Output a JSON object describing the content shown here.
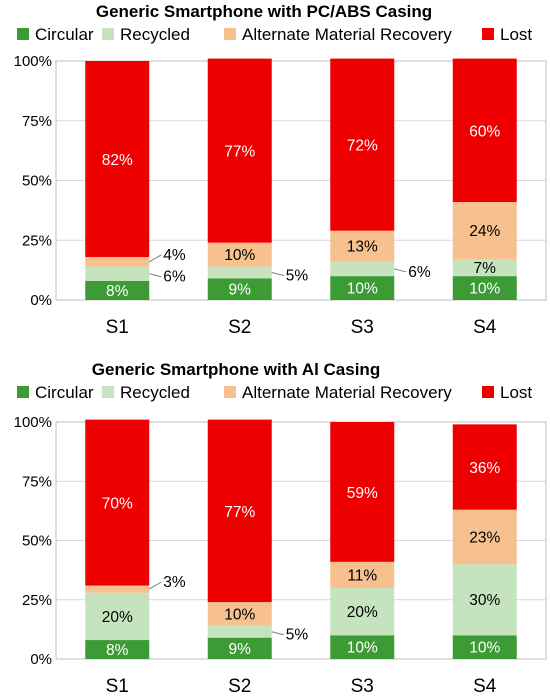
{
  "colors": {
    "circular": "#3d9b35",
    "recycled": "#c6e3bf",
    "alt": "#f6c08f",
    "lost": "#ee0000",
    "label_light": "#ffffff",
    "label_dark": "#000000"
  },
  "chart_data": [
    {
      "type": "bar",
      "stacked": true,
      "title": "Generic Smartphone with PC/ABS Casing",
      "categories": [
        "S1",
        "S2",
        "S3",
        "S4"
      ],
      "ylim": [
        0,
        100
      ],
      "yticks": [
        "0%",
        "25%",
        "50%",
        "75%",
        "100%"
      ],
      "legend_position": "top",
      "series": [
        {
          "name": "Circular",
          "values": [
            8,
            9,
            10,
            10
          ],
          "labels": [
            "8%",
            "9%",
            "10%",
            "10%"
          ]
        },
        {
          "name": "Recycled",
          "values": [
            6,
            5,
            6,
            7
          ],
          "labels": [
            "6%",
            "5%",
            "6%",
            "7%"
          ]
        },
        {
          "name": "Alternate Material Recovery",
          "values": [
            4,
            10,
            13,
            24
          ],
          "labels": [
            "4%",
            "10%",
            "13%",
            "24%"
          ]
        },
        {
          "name": "Lost",
          "values": [
            82,
            77,
            72,
            60
          ],
          "labels": [
            "82%",
            "77%",
            "72%",
            "60%"
          ]
        }
      ]
    },
    {
      "type": "bar",
      "stacked": true,
      "title": "Generic Smartphone with Al Casing",
      "categories": [
        "S1",
        "S2",
        "S3",
        "S4"
      ],
      "ylim": [
        0,
        100
      ],
      "yticks": [
        "0%",
        "25%",
        "50%",
        "75%",
        "100%"
      ],
      "legend_position": "top",
      "series": [
        {
          "name": "Circular",
          "values": [
            8,
            9,
            10,
            10
          ],
          "labels": [
            "8%",
            "9%",
            "10%",
            "10%"
          ]
        },
        {
          "name": "Recycled",
          "values": [
            20,
            5,
            20,
            30
          ],
          "labels": [
            "20%",
            "5%",
            "20%",
            "30%"
          ]
        },
        {
          "name": "Alternate Material Recovery",
          "values": [
            3,
            10,
            11,
            23
          ],
          "labels": [
            "3%",
            "10%",
            "11%",
            "23%"
          ]
        },
        {
          "name": "Lost",
          "values": [
            70,
            77,
            59,
            36
          ],
          "labels": [
            "70%",
            "77%",
            "59%",
            "36%"
          ]
        }
      ]
    }
  ]
}
